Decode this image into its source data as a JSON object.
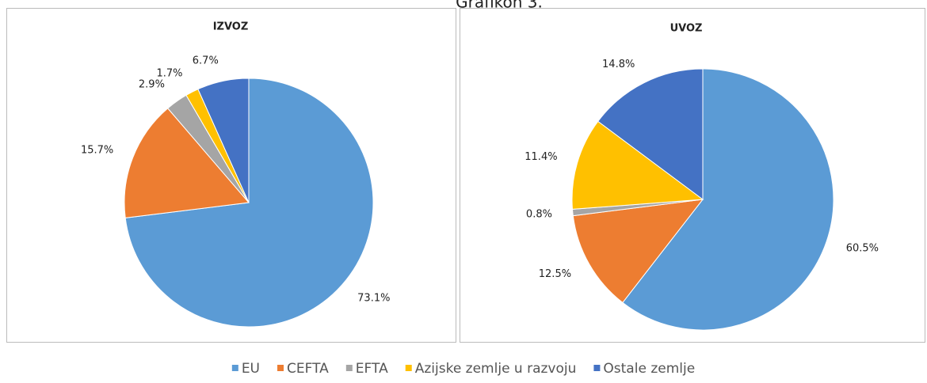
{
  "caption": "Grafikon 3.",
  "chart_data": [
    {
      "type": "pie",
      "title": "IZVOZ",
      "categories": [
        "EU",
        "CEFTA",
        "EFTA",
        "Azijske zemlje u razvoju",
        "Ostale zemlje"
      ],
      "values": [
        73.1,
        15.7,
        2.9,
        1.7,
        6.7
      ],
      "value_labels": [
        "73.1%",
        "15.7%",
        "2.9%",
        "1.7%",
        "6.7%"
      ],
      "colors": [
        "#5b9bd5",
        "#ed7d31",
        "#a5a5a5",
        "#ffc000",
        "#4472c4"
      ]
    },
    {
      "type": "pie",
      "title": "UVOZ",
      "categories": [
        "EU",
        "CEFTA",
        "EFTA",
        "Azijske zemlje u razvoju",
        "Ostale zemlje"
      ],
      "values": [
        60.5,
        12.5,
        0.8,
        11.4,
        14.8
      ],
      "value_labels": [
        "60.5%",
        "12.5%",
        "0.8%",
        "11.4%",
        "14.8%"
      ],
      "colors": [
        "#5b9bd5",
        "#ed7d31",
        "#a5a5a5",
        "#ffc000",
        "#4472c4"
      ]
    }
  ]
}
